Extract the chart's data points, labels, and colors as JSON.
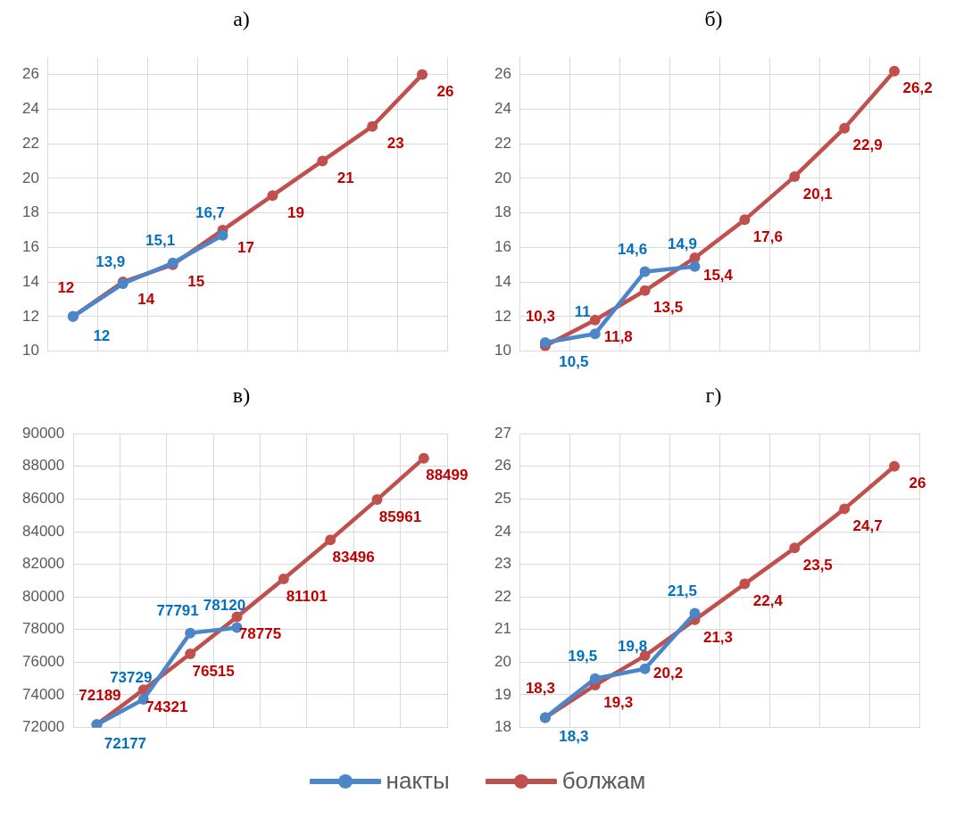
{
  "chart_data": [
    {
      "type": "line",
      "title": "а)",
      "categories": [
        null,
        null,
        null,
        null,
        null,
        null,
        null,
        null
      ],
      "ylim": [
        10,
        27
      ],
      "yticks": [
        10,
        12,
        14,
        16,
        18,
        20,
        22,
        24,
        26
      ],
      "grid": true,
      "marker": "circle",
      "legend": "bottom",
      "series": [
        {
          "name": "накты",
          "color": "#4a86c8",
          "values": [
            12,
            13.9,
            15.1,
            16.7,
            null,
            null,
            null,
            null
          ],
          "value_labels": [
            "12",
            "13,9",
            "15,1",
            "16,7",
            null,
            null,
            null,
            null
          ]
        },
        {
          "name": "болжам",
          "color": "#c0504d",
          "values": [
            12,
            14,
            15,
            17,
            19,
            21,
            23,
            26
          ],
          "value_labels": [
            "12",
            "14",
            "15",
            "17",
            "19",
            "21",
            "23",
            "26"
          ]
        }
      ]
    },
    {
      "type": "line",
      "title": "б)",
      "categories": [
        null,
        null,
        null,
        null,
        null,
        null,
        null,
        null
      ],
      "ylim": [
        10,
        27
      ],
      "yticks": [
        10,
        12,
        14,
        16,
        18,
        20,
        22,
        24,
        26
      ],
      "grid": true,
      "marker": "circle",
      "series": [
        {
          "color": "#4a86c8",
          "values": [
            10.5,
            11,
            14.6,
            14.9,
            null,
            null,
            null,
            null
          ],
          "value_labels": [
            "10,5",
            "11",
            "14,6",
            "14,9",
            null,
            null,
            null,
            null
          ]
        },
        {
          "color": "#c0504d",
          "values": [
            10.3,
            11.8,
            13.5,
            15.4,
            17.6,
            20.1,
            22.9,
            26.2
          ],
          "value_labels": [
            "10,3",
            "11,8",
            "13,5",
            "15,4",
            "17,6",
            "20,1",
            "22,9",
            "26,2"
          ]
        }
      ]
    },
    {
      "type": "line",
      "title": "в)",
      "categories": [
        null,
        null,
        null,
        null,
        null,
        null,
        null,
        null
      ],
      "ylim": [
        72000,
        90000
      ],
      "yticks": [
        72000,
        74000,
        76000,
        78000,
        80000,
        82000,
        84000,
        86000,
        88000,
        90000
      ],
      "grid": true,
      "marker": "circle",
      "series": [
        {
          "color": "#4a86c8",
          "values": [
            72177,
            73729,
            77791,
            78120,
            null,
            null,
            null,
            null
          ],
          "value_labels": [
            "72177",
            "73729",
            "77791",
            "78120",
            null,
            null,
            null,
            null
          ]
        },
        {
          "color": "#c0504d",
          "values": [
            72189,
            74321,
            76515,
            78775,
            81101,
            83496,
            85961,
            88499
          ],
          "value_labels": [
            "72189",
            "74321",
            "76515",
            "78775",
            "81101",
            "83496",
            "85961",
            "88499"
          ]
        }
      ]
    },
    {
      "type": "line",
      "title": "г)",
      "categories": [
        null,
        null,
        null,
        null,
        null,
        null,
        null,
        null
      ],
      "ylim": [
        18,
        27
      ],
      "yticks": [
        18,
        19,
        20,
        21,
        22,
        23,
        24,
        25,
        26,
        27
      ],
      "grid": true,
      "marker": "circle",
      "series": [
        {
          "color": "#4a86c8",
          "values": [
            18.3,
            19.5,
            19.8,
            21.5,
            null,
            null,
            null,
            null
          ],
          "value_labels": [
            "18,3",
            "19,5",
            "19,8",
            "21,5",
            null,
            null,
            null,
            null
          ]
        },
        {
          "color": "#c0504d",
          "values": [
            18.3,
            19.3,
            20.2,
            21.3,
            22.4,
            23.5,
            24.7,
            26
          ],
          "value_labels": [
            "18,3",
            "19,3",
            "20,2",
            "21,3",
            "22,4",
            "23,5",
            "24,7",
            "26"
          ]
        }
      ]
    }
  ]
}
